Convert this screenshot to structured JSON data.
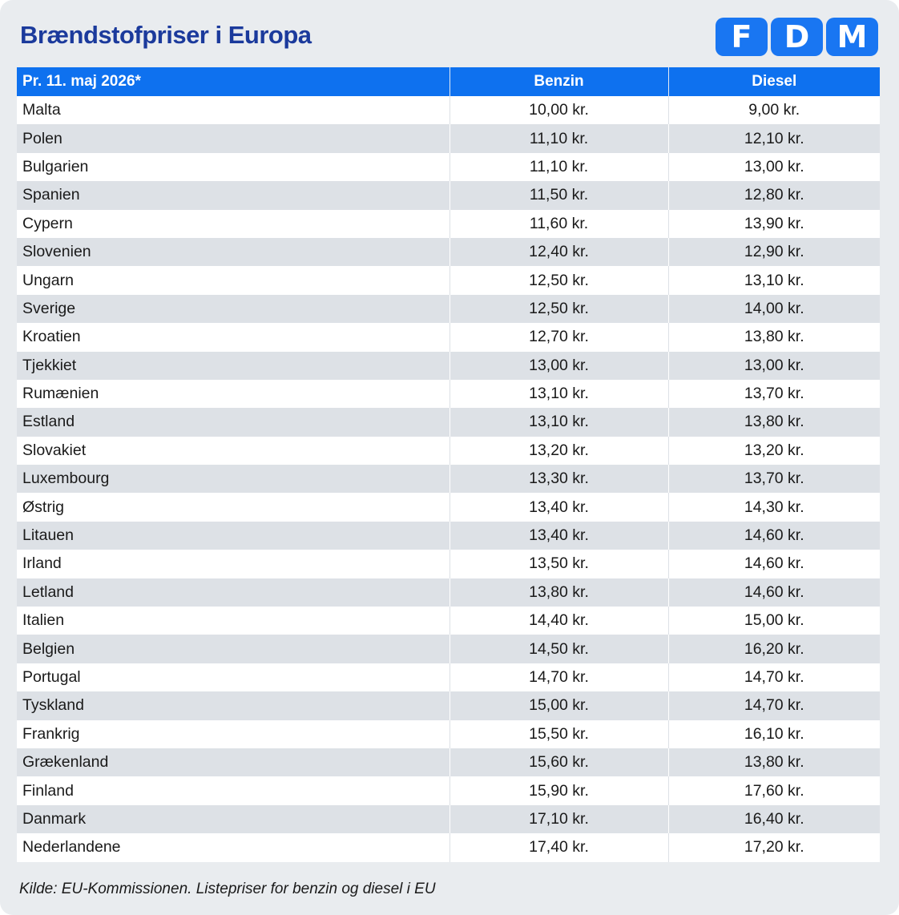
{
  "title": "Brændstofpriser i Europa",
  "logo": {
    "letters": [
      "F",
      "D",
      "M"
    ],
    "color": "#1976f2"
  },
  "colors": {
    "title": "#1b3a9c",
    "header_bg": "#0e71ef",
    "stripe": "#dde1e6",
    "card_bg": "#e9ecef"
  },
  "table": {
    "headers": [
      "Pr. 11. maj 2026*",
      "Benzin",
      "Diesel"
    ],
    "rows": [
      [
        "Malta",
        "10,00 kr.",
        "9,00 kr."
      ],
      [
        "Polen",
        "11,10 kr.",
        "12,10 kr."
      ],
      [
        "Bulgarien",
        "11,10 kr.",
        "13,00 kr."
      ],
      [
        "Spanien",
        "11,50 kr.",
        "12,80 kr."
      ],
      [
        "Cypern",
        "11,60 kr.",
        "13,90 kr."
      ],
      [
        "Slovenien",
        "12,40 kr.",
        "12,90 kr."
      ],
      [
        "Ungarn",
        "12,50 kr.",
        "13,10 kr."
      ],
      [
        "Sverige",
        "12,50 kr.",
        "14,00 kr."
      ],
      [
        "Kroatien",
        "12,70 kr.",
        "13,80 kr."
      ],
      [
        "Tjekkiet",
        "13,00 kr.",
        "13,00 kr."
      ],
      [
        "Rumænien",
        "13,10 kr.",
        "13,70 kr."
      ],
      [
        "Estland",
        "13,10 kr.",
        "13,80 kr."
      ],
      [
        "Slovakiet",
        "13,20 kr.",
        "13,20 kr."
      ],
      [
        "Luxembourg",
        "13,30 kr.",
        "13,70 kr."
      ],
      [
        "Østrig",
        "13,40 kr.",
        "14,30 kr."
      ],
      [
        "Litauen",
        "13,40 kr.",
        "14,60 kr."
      ],
      [
        "Irland",
        "13,50 kr.",
        "14,60 kr."
      ],
      [
        "Letland",
        "13,80 kr.",
        "14,60 kr."
      ],
      [
        "Italien",
        "14,40 kr.",
        "15,00 kr."
      ],
      [
        "Belgien",
        "14,50 kr.",
        "16,20 kr."
      ],
      [
        "Portugal",
        "14,70 kr.",
        "14,70 kr."
      ],
      [
        "Tyskland",
        "15,00 kr.",
        "14,70 kr."
      ],
      [
        "Frankrig",
        "15,50 kr.",
        "16,10 kr."
      ],
      [
        "Grækenland",
        "15,60 kr.",
        "13,80 kr."
      ],
      [
        "Finland",
        "15,90 kr.",
        "17,60 kr."
      ],
      [
        "Danmark",
        "17,10 kr.",
        "16,40 kr."
      ],
      [
        "Nederlandene",
        "17,40 kr.",
        "17,20 kr."
      ]
    ]
  },
  "footer": "Kilde: EU-Kommissionen. Listepriser for benzin og diesel i EU"
}
